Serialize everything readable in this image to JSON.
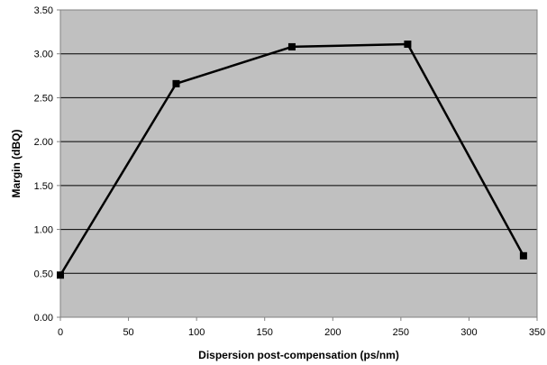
{
  "chart_data": {
    "type": "line",
    "title": "",
    "xlabel": "Dispersion post-compensation (ps/nm)",
    "ylabel": "Margin (dBQ)",
    "xlim": [
      0,
      350
    ],
    "ylim": [
      0,
      3.5
    ],
    "x_ticks": [
      "0",
      "50",
      "100",
      "150",
      "200",
      "250",
      "300",
      "350"
    ],
    "y_ticks": [
      "0.00",
      "0.50",
      "1.00",
      "1.50",
      "2.00",
      "2.50",
      "3.00",
      "3.50"
    ],
    "grid": "horizontal",
    "legend": "none",
    "series": [
      {
        "x": [
          0,
          85,
          170,
          255,
          340
        ],
        "y": [
          0.48,
          2.66,
          3.08,
          3.11,
          0.7
        ]
      }
    ],
    "colors": {
      "plot_background": "#c0c0c0",
      "gridline": "#000000",
      "line": "#000000",
      "marker": "#000000",
      "axis": "#808080"
    }
  }
}
